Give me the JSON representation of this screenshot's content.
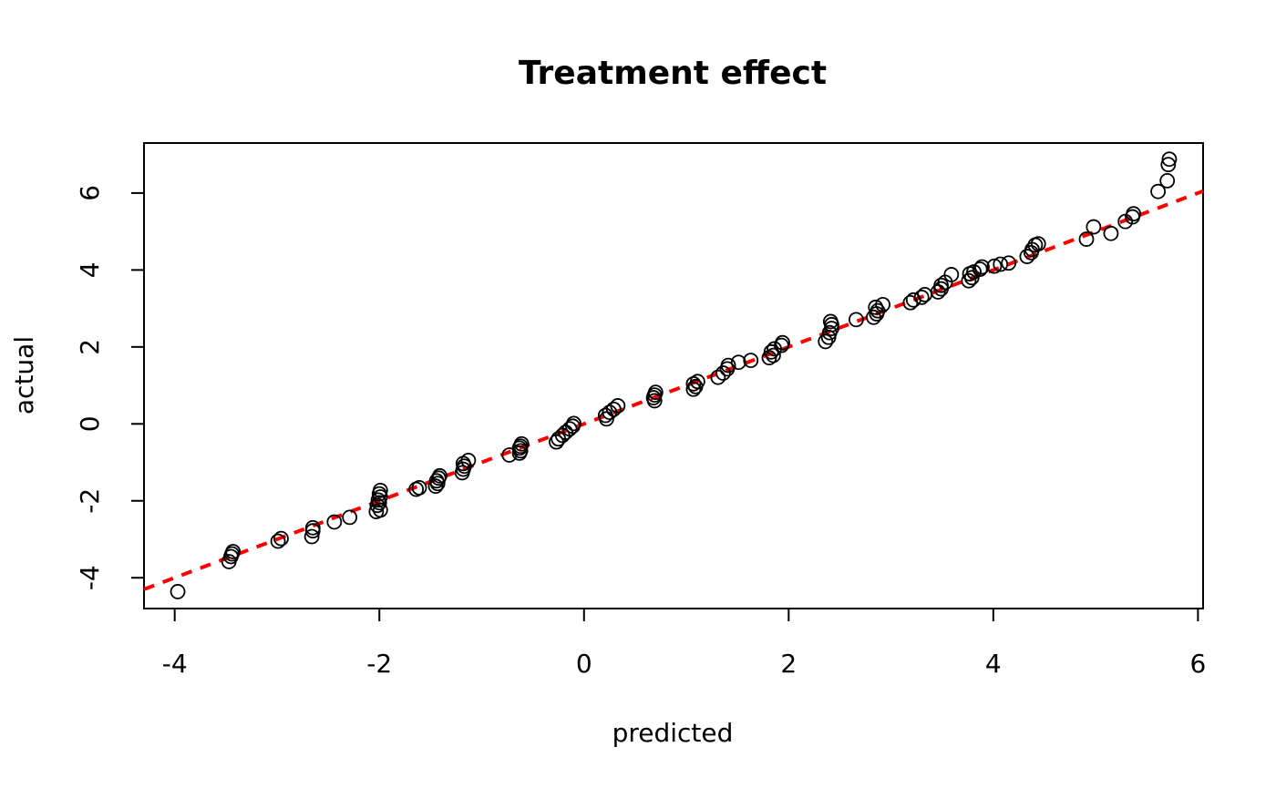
{
  "chart_data": {
    "type": "scatter",
    "title": "Treatment effect",
    "xlabel": "predicted",
    "ylabel": "actual",
    "xlim": [
      -4.3,
      6.05
    ],
    "ylim": [
      -4.8,
      7.3
    ],
    "xticks": [
      -4,
      -2,
      0,
      2,
      4,
      6
    ],
    "yticks": [
      -4,
      -2,
      0,
      2,
      4,
      6
    ],
    "xtick_labels": [
      "-4",
      "-2",
      "0",
      "2",
      "4",
      "6"
    ],
    "ytick_labels": [
      "-4",
      "-2",
      "0",
      "2",
      "4",
      "6"
    ],
    "grid": false,
    "marker": "open-circle",
    "reference_line": {
      "slope": 1,
      "intercept": 0,
      "style": "dashed",
      "color": "#ff0000"
    },
    "points": [
      [
        -3.97,
        -4.36
      ],
      [
        -3.47,
        -3.58
      ],
      [
        -3.45,
        -3.45
      ],
      [
        -3.44,
        -3.38
      ],
      [
        -3.43,
        -3.32
      ],
      [
        -2.99,
        -3.05
      ],
      [
        -2.96,
        -2.98
      ],
      [
        -2.66,
        -2.93
      ],
      [
        -2.65,
        -2.78
      ],
      [
        -2.65,
        -2.7
      ],
      [
        -2.44,
        -2.55
      ],
      [
        -2.29,
        -2.43
      ],
      [
        -2.03,
        -2.28
      ],
      [
        -1.99,
        -2.24
      ],
      [
        -2.02,
        -2.12
      ],
      [
        -2.0,
        -2.05
      ],
      [
        -2.01,
        -1.98
      ],
      [
        -1.99,
        -1.9
      ],
      [
        -2.0,
        -1.82
      ],
      [
        -1.99,
        -1.73
      ],
      [
        -1.64,
        -1.7
      ],
      [
        -1.61,
        -1.66
      ],
      [
        -1.45,
        -1.62
      ],
      [
        -1.43,
        -1.55
      ],
      [
        -1.44,
        -1.48
      ],
      [
        -1.42,
        -1.41
      ],
      [
        -1.41,
        -1.35
      ],
      [
        -1.19,
        -1.27
      ],
      [
        -1.18,
        -1.18
      ],
      [
        -1.17,
        -1.1
      ],
      [
        -1.18,
        -1.03
      ],
      [
        -1.13,
        -0.95
      ],
      [
        -0.73,
        -0.81
      ],
      [
        -0.63,
        -0.76
      ],
      [
        -0.62,
        -0.7
      ],
      [
        -0.63,
        -0.63
      ],
      [
        -0.62,
        -0.58
      ],
      [
        -0.61,
        -0.52
      ],
      [
        -0.27,
        -0.47
      ],
      [
        -0.25,
        -0.39
      ],
      [
        -0.21,
        -0.3
      ],
      [
        -0.18,
        -0.22
      ],
      [
        -0.14,
        -0.13
      ],
      [
        -0.11,
        -0.06
      ],
      [
        -0.1,
        0.01
      ],
      [
        0.22,
        0.13
      ],
      [
        0.21,
        0.22
      ],
      [
        0.25,
        0.3
      ],
      [
        0.29,
        0.38
      ],
      [
        0.33,
        0.47
      ],
      [
        0.69,
        0.6
      ],
      [
        0.68,
        0.68
      ],
      [
        0.69,
        0.75
      ],
      [
        0.7,
        0.82
      ],
      [
        1.07,
        0.9
      ],
      [
        1.09,
        0.97
      ],
      [
        1.07,
        1.04
      ],
      [
        1.11,
        1.1
      ],
      [
        1.31,
        1.21
      ],
      [
        1.36,
        1.32
      ],
      [
        1.4,
        1.43
      ],
      [
        1.41,
        1.52
      ],
      [
        1.51,
        1.6
      ],
      [
        1.63,
        1.65
      ],
      [
        1.81,
        1.72
      ],
      [
        1.85,
        1.78
      ],
      [
        1.83,
        1.87
      ],
      [
        1.86,
        1.95
      ],
      [
        1.93,
        2.04
      ],
      [
        1.94,
        2.11
      ],
      [
        2.36,
        2.14
      ],
      [
        2.39,
        2.25
      ],
      [
        2.4,
        2.37
      ],
      [
        2.42,
        2.48
      ],
      [
        2.42,
        2.58
      ],
      [
        2.41,
        2.66
      ],
      [
        2.66,
        2.71
      ],
      [
        2.83,
        2.77
      ],
      [
        2.86,
        2.86
      ],
      [
        2.87,
        2.94
      ],
      [
        2.85,
        3.03
      ],
      [
        2.92,
        3.1
      ],
      [
        3.19,
        3.15
      ],
      [
        3.22,
        3.22
      ],
      [
        3.3,
        3.29
      ],
      [
        3.33,
        3.36
      ],
      [
        3.46,
        3.43
      ],
      [
        3.49,
        3.51
      ],
      [
        3.49,
        3.6
      ],
      [
        3.53,
        3.68
      ],
      [
        3.59,
        3.88
      ],
      [
        3.76,
        3.72
      ],
      [
        3.79,
        3.8
      ],
      [
        3.77,
        3.9
      ],
      [
        3.81,
        3.95
      ],
      [
        3.87,
        4.02
      ],
      [
        3.89,
        4.08
      ],
      [
        4.01,
        4.1
      ],
      [
        4.07,
        4.15
      ],
      [
        4.15,
        4.18
      ],
      [
        4.33,
        4.35
      ],
      [
        4.37,
        4.45
      ],
      [
        4.38,
        4.53
      ],
      [
        4.41,
        4.65
      ],
      [
        4.44,
        4.68
      ],
      [
        4.91,
        4.8
      ],
      [
        4.98,
        5.12
      ],
      [
        5.15,
        4.95
      ],
      [
        5.29,
        5.26
      ],
      [
        5.36,
        5.38
      ],
      [
        5.37,
        5.46
      ],
      [
        5.61,
        6.04
      ],
      [
        5.7,
        6.32
      ],
      [
        5.71,
        6.74
      ],
      [
        5.72,
        6.88
      ]
    ]
  }
}
